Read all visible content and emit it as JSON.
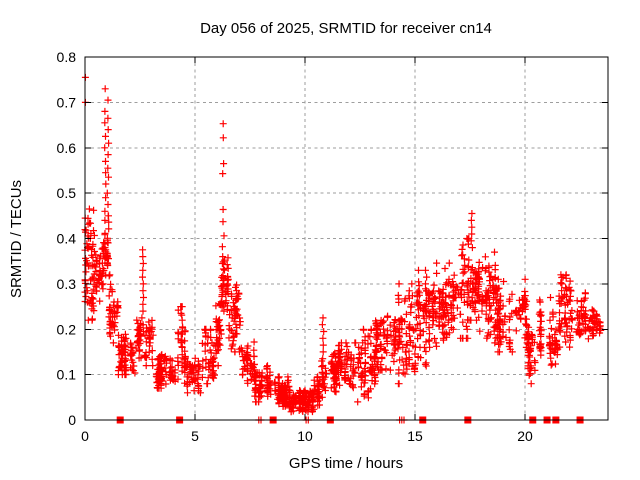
{
  "chart_data": {
    "type": "scatter",
    "title": "Day 056 of 2025, SRMTID for receiver cn14",
    "xlabel": "GPS time / hours",
    "ylabel": "SRMTID / TECUs",
    "xlim": [
      0,
      23.77
    ],
    "ylim": [
      0,
      0.8
    ],
    "xticks": {
      "values": [
        0,
        5,
        10,
        15,
        20
      ],
      "labels": [
        "0",
        "5",
        "10",
        "15",
        "20"
      ]
    },
    "yticks": {
      "values": [
        0,
        0.1,
        0.2,
        0.3,
        0.4,
        0.5,
        0.6,
        0.7,
        0.8
      ],
      "labels": [
        "0",
        "0.1",
        "0.2",
        "0.3",
        "0.4",
        "0.5",
        "0.6",
        "0.7",
        "0.8"
      ]
    },
    "grid": {
      "visible": true,
      "style": "dashed",
      "color": "#9e9e9e"
    },
    "marker": {
      "shape": "plus",
      "size": 7,
      "color": "#ff0000"
    },
    "background": "#ffffff",
    "series": {
      "outlier_points": [
        [
          0.02,
          0.755
        ],
        [
          0.02,
          0.7
        ]
      ],
      "spike_columns": [
        {
          "x": 0.92,
          "ys": [
            0.73,
            0.68,
            0.655,
            0.625,
            0.6,
            0.57,
            0.545,
            0.52,
            0.49,
            0.46,
            0.44
          ]
        },
        {
          "x": 1.05,
          "ys": [
            0.705,
            0.665,
            0.64,
            0.61,
            0.585,
            0.555,
            0.535,
            0.5,
            0.475,
            0.45
          ]
        },
        {
          "x": 2.62,
          "ys": [
            0.375,
            0.36,
            0.345,
            0.33,
            0.315,
            0.3,
            0.285,
            0.27,
            0.255,
            0.24,
            0.225,
            0.21,
            0.195
          ]
        },
        {
          "x": 4.4,
          "ys": [
            0.25,
            0.235,
            0.22,
            0.205,
            0.19,
            0.175,
            0.16
          ]
        },
        {
          "x": 6.28,
          "ys": [
            0.653,
            0.622,
            0.565,
            0.543,
            0.464,
            0.437,
            0.406,
            0.382,
            0.36,
            0.345
          ]
        },
        {
          "x": 10.82,
          "ys": [
            0.225,
            0.21,
            0.195,
            0.18,
            0.165,
            0.15,
            0.135,
            0.12,
            0.105,
            0.09,
            0.075
          ]
        },
        {
          "x": 15.5,
          "ys": [
            0.33,
            0.315,
            0.3,
            0.285
          ]
        },
        {
          "x": 17.58,
          "ys": [
            0.455,
            0.44,
            0.425,
            0.41,
            0.395,
            0.38
          ]
        },
        {
          "x": 21.7,
          "ys": [
            0.315,
            0.3,
            0.285,
            0.27
          ]
        }
      ],
      "density_bands": [
        {
          "x0": 0.0,
          "x1": 0.45,
          "ylo": 0.22,
          "yhi": 0.465,
          "n": 70
        },
        {
          "x0": 0.45,
          "x1": 0.85,
          "ylo": 0.25,
          "yhi": 0.38,
          "n": 40
        },
        {
          "x0": 0.85,
          "x1": 1.15,
          "ylo": 0.3,
          "yhi": 0.45,
          "n": 30
        },
        {
          "x0": 1.1,
          "x1": 1.5,
          "ylo": 0.17,
          "yhi": 0.32,
          "n": 45
        },
        {
          "x0": 1.5,
          "x1": 2.3,
          "ylo": 0.1,
          "yhi": 0.19,
          "n": 85
        },
        {
          "x0": 2.3,
          "x1": 2.55,
          "ylo": 0.12,
          "yhi": 0.24,
          "n": 28
        },
        {
          "x0": 2.7,
          "x1": 3.1,
          "ylo": 0.12,
          "yhi": 0.22,
          "n": 35
        },
        {
          "x0": 3.1,
          "x1": 4.2,
          "ylo": 0.07,
          "yhi": 0.15,
          "n": 90
        },
        {
          "x0": 4.2,
          "x1": 4.55,
          "ylo": 0.09,
          "yhi": 0.25,
          "n": 30
        },
        {
          "x0": 4.55,
          "x1": 5.3,
          "ylo": 0.06,
          "yhi": 0.14,
          "n": 55
        },
        {
          "x0": 5.3,
          "x1": 5.9,
          "ylo": 0.08,
          "yhi": 0.2,
          "n": 50
        },
        {
          "x0": 5.9,
          "x1": 6.2,
          "ylo": 0.12,
          "yhi": 0.26,
          "n": 35
        },
        {
          "x0": 6.2,
          "x1": 6.5,
          "ylo": 0.24,
          "yhi": 0.37,
          "n": 45
        },
        {
          "x0": 6.5,
          "x1": 7.1,
          "ylo": 0.15,
          "yhi": 0.31,
          "n": 55
        },
        {
          "x0": 7.1,
          "x1": 7.7,
          "ylo": 0.08,
          "yhi": 0.18,
          "n": 50
        },
        {
          "x0": 7.7,
          "x1": 8.5,
          "ylo": 0.04,
          "yhi": 0.12,
          "n": 75
        },
        {
          "x0": 8.5,
          "x1": 9.3,
          "ylo": 0.03,
          "yhi": 0.095,
          "n": 85
        },
        {
          "x0": 9.3,
          "x1": 10.4,
          "ylo": 0.018,
          "yhi": 0.065,
          "n": 115
        },
        {
          "x0": 10.4,
          "x1": 10.75,
          "ylo": 0.03,
          "yhi": 0.1,
          "n": 30
        },
        {
          "x0": 10.75,
          "x1": 10.95,
          "ylo": 0.05,
          "yhi": 0.13,
          "n": 15
        },
        {
          "x0": 10.95,
          "x1": 11.5,
          "ylo": 0.055,
          "yhi": 0.15,
          "n": 50
        },
        {
          "x0": 11.5,
          "x1": 12.3,
          "ylo": 0.07,
          "yhi": 0.17,
          "n": 70
        },
        {
          "x0": 12.3,
          "x1": 13.2,
          "ylo": 0.04,
          "yhi": 0.2,
          "n": 75
        },
        {
          "x0": 13.2,
          "x1": 14.2,
          "ylo": 0.11,
          "yhi": 0.25,
          "n": 85
        },
        {
          "x0": 14.2,
          "x1": 15.1,
          "ylo": 0.08,
          "yhi": 0.3,
          "n": 85
        },
        {
          "x0": 15.1,
          "x1": 16.0,
          "ylo": 0.11,
          "yhi": 0.33,
          "n": 85
        },
        {
          "x0": 16.0,
          "x1": 17.0,
          "ylo": 0.15,
          "yhi": 0.36,
          "n": 90
        },
        {
          "x0": 17.0,
          "x1": 17.45,
          "ylo": 0.18,
          "yhi": 0.4,
          "n": 45
        },
        {
          "x0": 17.45,
          "x1": 17.9,
          "ylo": 0.22,
          "yhi": 0.36,
          "n": 50
        },
        {
          "x0": 17.9,
          "x1": 18.7,
          "ylo": 0.17,
          "yhi": 0.37,
          "n": 80
        },
        {
          "x0": 18.7,
          "x1": 19.5,
          "ylo": 0.15,
          "yhi": 0.31,
          "n": 65
        },
        {
          "x0": 19.5,
          "x1": 20.1,
          "ylo": 0.16,
          "yhi": 0.31,
          "n": 45
        },
        {
          "x0": 20.1,
          "x1": 20.65,
          "ylo": 0.08,
          "yhi": 0.21,
          "n": 40
        },
        {
          "x0": 20.65,
          "x1": 21.35,
          "ylo": 0.11,
          "yhi": 0.27,
          "n": 55
        },
        {
          "x0": 21.35,
          "x1": 21.55,
          "ylo": 0.12,
          "yhi": 0.21,
          "n": 15
        },
        {
          "x0": 21.55,
          "x1": 22.25,
          "ylo": 0.15,
          "yhi": 0.32,
          "n": 60
        },
        {
          "x0": 22.25,
          "x1": 22.8,
          "ylo": 0.16,
          "yhi": 0.28,
          "n": 45
        },
        {
          "x0": 22.8,
          "x1": 23.25,
          "ylo": 0.17,
          "yhi": 0.25,
          "n": 35
        },
        {
          "x0": 23.25,
          "x1": 23.55,
          "ylo": 0.18,
          "yhi": 0.23,
          "n": 10
        }
      ],
      "event_squares_x": [
        1.6,
        4.3,
        8.55,
        11.15,
        15.35,
        17.4,
        20.35,
        21.0,
        21.4,
        22.5
      ],
      "baseline_plus_x": [
        7.9,
        8.0,
        10.05,
        10.15,
        14.3,
        14.4,
        14.5
      ]
    }
  }
}
